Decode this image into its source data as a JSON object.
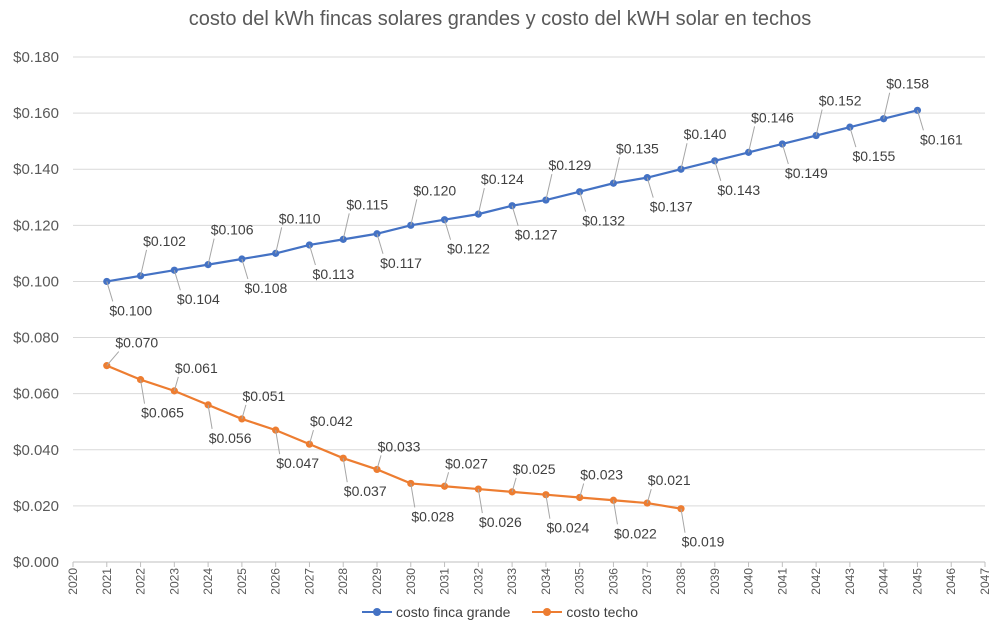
{
  "chart_data": {
    "type": "line",
    "title": "costo del kWh fincas solares grandes y costo del kWH solar en techos",
    "xlim": [
      2020,
      2047
    ],
    "ylim": [
      0,
      0.18
    ],
    "x_ticks": [
      "2020",
      "2021",
      "2022",
      "2023",
      "2024",
      "2025",
      "2026",
      "2027",
      "2028",
      "2029",
      "2030",
      "2031",
      "2032",
      "2033",
      "2034",
      "2035",
      "2036",
      "2037",
      "2038",
      "2039",
      "2040",
      "2041",
      "2042",
      "2043",
      "2044",
      "2045",
      "2046",
      "2047"
    ],
    "y_ticks": [
      "$0.000",
      "$0.020",
      "$0.040",
      "$0.060",
      "$0.080",
      "$0.100",
      "$0.120",
      "$0.140",
      "$0.160",
      "$0.180"
    ],
    "grid": true,
    "legend_position": "bottom",
    "series": [
      {
        "name": "costo finca grande",
        "color": "#4472C4",
        "x": [
          2021,
          2022,
          2023,
          2024,
          2025,
          2026,
          2027,
          2028,
          2029,
          2030,
          2031,
          2032,
          2033,
          2034,
          2035,
          2036,
          2037,
          2038,
          2039,
          2040,
          2041,
          2042,
          2043,
          2044,
          2045
        ],
        "values": [
          0.1,
          0.102,
          0.104,
          0.106,
          0.108,
          0.11,
          0.113,
          0.115,
          0.117,
          0.12,
          0.122,
          0.124,
          0.127,
          0.129,
          0.132,
          0.135,
          0.137,
          0.14,
          0.143,
          0.146,
          0.149,
          0.152,
          0.155,
          0.158,
          0.161
        ],
        "labels": [
          "$0.100",
          "$0.102",
          "$0.104",
          "$0.106",
          "$0.108",
          "$0.110",
          "$0.113",
          "$0.115",
          "$0.117",
          "$0.120",
          "$0.122",
          "$0.124",
          "$0.127",
          "$0.129",
          "$0.132",
          "$0.135",
          "$0.137",
          "$0.140",
          "$0.143",
          "$0.146",
          "$0.149",
          "$0.152",
          "$0.155",
          "$0.158",
          "$0.161"
        ]
      },
      {
        "name": "costo techo",
        "color": "#ED7D31",
        "x": [
          2021,
          2022,
          2023,
          2024,
          2025,
          2026,
          2027,
          2028,
          2029,
          2030,
          2031,
          2032,
          2033,
          2034,
          2035,
          2036,
          2037,
          2038
        ],
        "values": [
          0.07,
          0.065,
          0.061,
          0.056,
          0.051,
          0.047,
          0.042,
          0.037,
          0.033,
          0.028,
          0.027,
          0.026,
          0.025,
          0.024,
          0.023,
          0.022,
          0.021,
          0.019
        ],
        "labels": [
          "$0.070",
          "$0.065",
          "$0.061",
          "$0.056",
          "$0.051",
          "$0.047",
          "$0.042",
          "$0.037",
          "$0.033",
          "$0.028",
          "$0.027",
          "$0.026",
          "$0.025",
          "$0.024",
          "$0.023",
          "$0.022",
          "$0.021",
          "$0.019"
        ]
      }
    ]
  }
}
